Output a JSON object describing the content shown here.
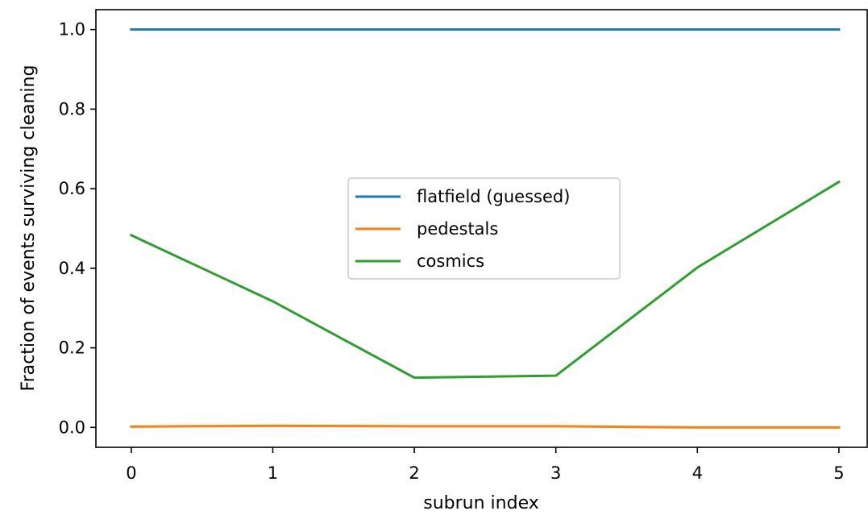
{
  "chart_data": {
    "type": "line",
    "xlabel": "subrun index",
    "ylabel": "Fraction of events surviving cleaning",
    "xlim": [
      -0.25,
      5.2
    ],
    "ylim": [
      -0.05,
      1.05
    ],
    "xticks": [
      0,
      1,
      2,
      3,
      4,
      5
    ],
    "yticks": [
      0.0,
      0.2,
      0.4,
      0.6,
      0.8,
      1.0
    ],
    "xtick_labels": [
      "0",
      "1",
      "2",
      "3",
      "4",
      "5"
    ],
    "ytick_labels": [
      "0.0",
      "0.2",
      "0.4",
      "0.6",
      "0.8",
      "1.0"
    ],
    "x": [
      0,
      1,
      2,
      3,
      4,
      5
    ],
    "series": [
      {
        "name": "flatfield (guessed)",
        "color": "#1f77b4",
        "values": [
          1.0,
          1.0,
          1.0,
          1.0,
          1.0,
          1.0
        ]
      },
      {
        "name": "pedestals",
        "color": "#ff7f0e",
        "values": [
          0.002,
          0.004,
          0.003,
          0.003,
          0.0,
          0.0
        ]
      },
      {
        "name": "cosmics",
        "color": "#2ca02c",
        "values": [
          0.483,
          0.317,
          0.125,
          0.13,
          0.402,
          0.617
        ]
      }
    ],
    "grid": false,
    "legend_position": "center"
  }
}
